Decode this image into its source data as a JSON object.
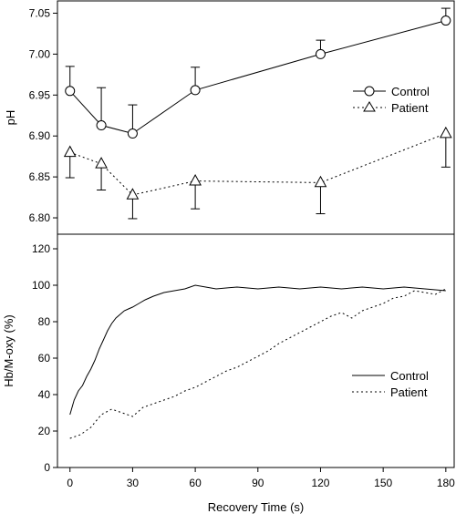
{
  "chart_data": [
    {
      "type": "line",
      "ylabel": "pH",
      "xlabel": "",
      "xlim": [
        -6,
        184
      ],
      "ylim": [
        6.78,
        7.065
      ],
      "yticks": [
        "6.80",
        "6.85",
        "6.90",
        "6.95",
        "7.00",
        "7.05"
      ],
      "grid": false,
      "legend_position": "right",
      "series": [
        {
          "name": "Control",
          "line_style": "solid",
          "marker": "circle",
          "x": [
            0,
            15,
            30,
            60,
            120,
            180
          ],
          "y": [
            6.955,
            6.913,
            6.903,
            6.956,
            7.0,
            7.041
          ],
          "error_upper": [
            6.985,
            6.959,
            6.938,
            6.984,
            7.017,
            7.056
          ]
        },
        {
          "name": "Patient",
          "line_style": "dotted",
          "marker": "triangle",
          "x": [
            0,
            15,
            30,
            60,
            120,
            180
          ],
          "y": [
            6.88,
            6.866,
            6.828,
            6.845,
            6.843,
            6.903
          ],
          "error_lower": [
            6.849,
            6.834,
            6.799,
            6.811,
            6.805,
            6.862
          ]
        }
      ]
    },
    {
      "type": "line",
      "ylabel": "Hb/M-oxy (%)",
      "xlabel": "Recovery Time (s)",
      "xlim": [
        -6,
        184
      ],
      "ylim": [
        0,
        128
      ],
      "xticks": [
        "0",
        "30",
        "60",
        "90",
        "120",
        "150",
        "180"
      ],
      "yticks": [
        "0",
        "20",
        "40",
        "60",
        "80",
        "100",
        "120"
      ],
      "grid": false,
      "legend_position": "bottom-right",
      "series": [
        {
          "name": "Control",
          "line_style": "solid",
          "x": [
            0,
            2,
            4,
            6,
            8,
            10,
            12,
            14,
            16,
            18,
            20,
            22,
            24,
            26,
            28,
            30,
            33,
            36,
            40,
            45,
            50,
            55,
            60,
            65,
            70,
            80,
            90,
            100,
            110,
            120,
            130,
            140,
            150,
            160,
            170,
            180
          ],
          "y": [
            29,
            37,
            42,
            45,
            50,
            54,
            59,
            65,
            70,
            75,
            79,
            82,
            84,
            86,
            87,
            88,
            90,
            92,
            94,
            96,
            97,
            98,
            100,
            99,
            98,
            99,
            98,
            99,
            98,
            99,
            98,
            99,
            98,
            99,
            98,
            97
          ]
        },
        {
          "name": "Patient",
          "line_style": "dotted",
          "x": [
            0,
            5,
            10,
            15,
            20,
            25,
            30,
            35,
            40,
            45,
            50,
            55,
            60,
            65,
            70,
            75,
            80,
            85,
            90,
            95,
            100,
            105,
            110,
            115,
            120,
            125,
            130,
            135,
            140,
            145,
            150,
            155,
            160,
            165,
            170,
            175,
            180
          ],
          "y": [
            16,
            18,
            22,
            29,
            32,
            30,
            28,
            33,
            35,
            37,
            39,
            42,
            44,
            47,
            50,
            53,
            55,
            58,
            61,
            64,
            68,
            71,
            74,
            77,
            80,
            83,
            85,
            82,
            86,
            88,
            90,
            93,
            94,
            97,
            96,
            95,
            98
          ]
        }
      ]
    }
  ]
}
